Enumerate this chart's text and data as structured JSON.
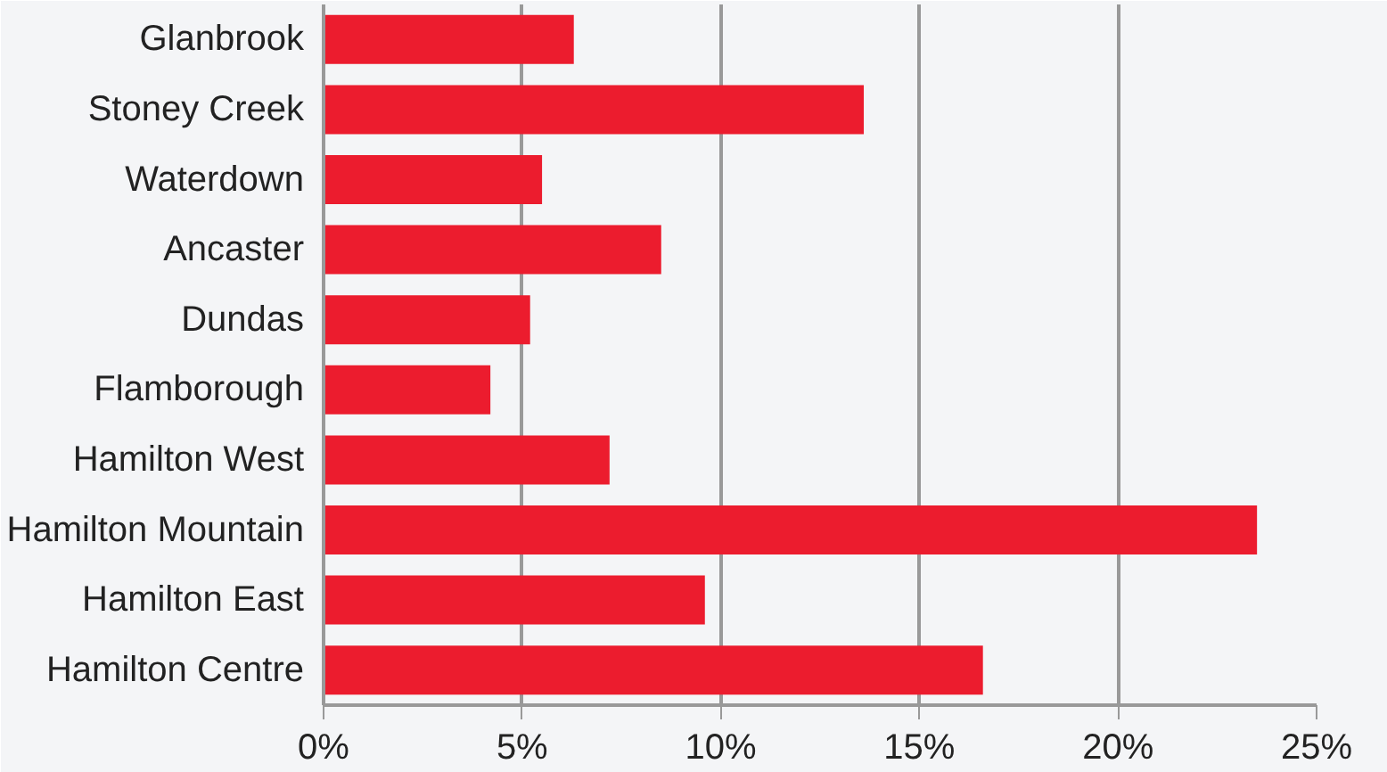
{
  "chart_data": {
    "type": "bar",
    "orientation": "horizontal",
    "categories": [
      "Glanbrook",
      "Stoney Creek",
      "Waterdown",
      "Ancaster",
      "Dundas",
      "Flamborough",
      "Hamilton West",
      "Hamilton Mountain",
      "Hamilton East",
      "Hamilton Centre"
    ],
    "values": [
      6.3,
      13.6,
      5.5,
      8.5,
      5.2,
      4.2,
      7.2,
      23.5,
      9.6,
      16.6
    ],
    "color": "#ec1c2e",
    "xlim": [
      0,
      25
    ],
    "xticks": [
      {
        "value": 0,
        "label": "0%"
      },
      {
        "value": 5,
        "label": "5%"
      },
      {
        "value": 10,
        "label": "10%"
      },
      {
        "value": 15,
        "label": "15%"
      },
      {
        "value": 20,
        "label": "20%"
      },
      {
        "value": 25,
        "label": "25%"
      }
    ],
    "grid": "x"
  }
}
